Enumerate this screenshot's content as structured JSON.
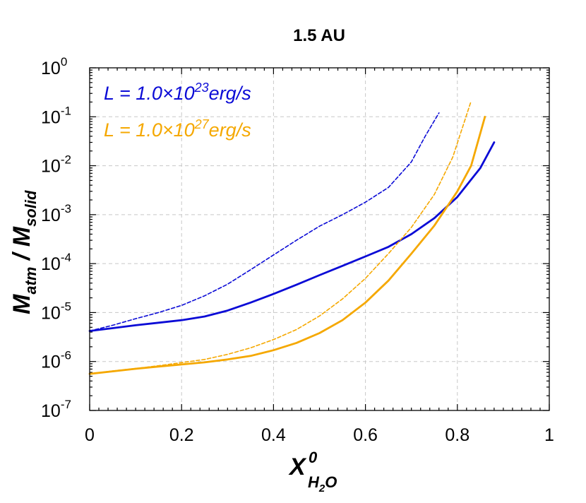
{
  "chart_data": {
    "type": "line",
    "title": "1.5 AU",
    "xlabel_main": "X",
    "xlabel_sub": "H",
    "xlabel_subsub": "2",
    "xlabel_sub_end": "O",
    "xlabel_sup": "0",
    "ylabel_num_main": "M",
    "ylabel_num_sub": "atm",
    "ylabel_sep": " / ",
    "ylabel_den_main": "M",
    "ylabel_den_sub": "solid",
    "xlim": [
      0,
      1
    ],
    "ylim_log10": [
      -7,
      0
    ],
    "y_scale": "log",
    "grid": true,
    "x_ticks": [
      "0",
      "0.2",
      "0.4",
      "0.6",
      "0.8",
      "1"
    ],
    "y_tick_base": "10",
    "y_tick_exponents": [
      "-7",
      "-6",
      "-5",
      "-4",
      "-3",
      "-2",
      "-1",
      "0"
    ],
    "legend_position": "top-left",
    "legend": [
      {
        "prefix": "L = 1.0×10",
        "exponent": "23",
        "suffix": "erg/s",
        "color": "#0b0bd6"
      },
      {
        "prefix": "L = 1.0×10",
        "exponent": "27",
        "suffix": "erg/s",
        "color": "#f5a800"
      }
    ],
    "series": [
      {
        "color": "#0b0bd6",
        "style": "solid",
        "points": [
          [
            0,
            4.2e-06
          ],
          [
            0.05,
            4.8e-06
          ],
          [
            0.1,
            5.5e-06
          ],
          [
            0.15,
            6.2e-06
          ],
          [
            0.2,
            7e-06
          ],
          [
            0.25,
            8.3e-06
          ],
          [
            0.3,
            1.1e-05
          ],
          [
            0.35,
            1.6e-05
          ],
          [
            0.4,
            2.4e-05
          ],
          [
            0.45,
            3.7e-05
          ],
          [
            0.5,
            5.8e-05
          ],
          [
            0.55,
            9e-05
          ],
          [
            0.6,
            0.00014
          ],
          [
            0.65,
            0.00022
          ],
          [
            0.7,
            0.0004
          ],
          [
            0.75,
            0.00085
          ],
          [
            0.8,
            0.0023
          ],
          [
            0.85,
            0.009
          ],
          [
            0.88,
            0.03
          ]
        ]
      },
      {
        "color": "#0b0bd6",
        "style": "dashed",
        "points": [
          [
            0,
            4.2e-06
          ],
          [
            0.05,
            5.5e-06
          ],
          [
            0.1,
            7.5e-06
          ],
          [
            0.15,
            1e-05
          ],
          [
            0.2,
            1.4e-05
          ],
          [
            0.25,
            2.2e-05
          ],
          [
            0.3,
            3.8e-05
          ],
          [
            0.35,
            7.5e-05
          ],
          [
            0.4,
            0.00015
          ],
          [
            0.45,
            0.0003
          ],
          [
            0.5,
            0.00058
          ],
          [
            0.55,
            0.001
          ],
          [
            0.6,
            0.0018
          ],
          [
            0.65,
            0.0036
          ],
          [
            0.7,
            0.012
          ],
          [
            0.73,
            0.04
          ],
          [
            0.76,
            0.12
          ]
        ]
      },
      {
        "color": "#f5a800",
        "style": "solid",
        "points": [
          [
            0,
            5.6e-07
          ],
          [
            0.05,
            6.3e-07
          ],
          [
            0.1,
            7.1e-07
          ],
          [
            0.15,
            7.9e-07
          ],
          [
            0.2,
            8.7e-07
          ],
          [
            0.25,
            9.6e-07
          ],
          [
            0.3,
            1.1e-06
          ],
          [
            0.35,
            1.3e-06
          ],
          [
            0.4,
            1.7e-06
          ],
          [
            0.45,
            2.4e-06
          ],
          [
            0.5,
            3.8e-06
          ],
          [
            0.55,
            7e-06
          ],
          [
            0.6,
            1.6e-05
          ],
          [
            0.65,
            4.5e-05
          ],
          [
            0.7,
            0.00016
          ],
          [
            0.75,
            0.0006
          ],
          [
            0.8,
            0.003
          ],
          [
            0.83,
            0.01
          ],
          [
            0.86,
            0.1
          ]
        ]
      },
      {
        "color": "#f5a800",
        "style": "dashed",
        "points": [
          [
            0,
            5.6e-07
          ],
          [
            0.05,
            6.4e-07
          ],
          [
            0.1,
            7.2e-07
          ],
          [
            0.15,
            8.2e-07
          ],
          [
            0.2,
            9.5e-07
          ],
          [
            0.25,
            1.1e-06
          ],
          [
            0.3,
            1.4e-06
          ],
          [
            0.35,
            1.9e-06
          ],
          [
            0.4,
            2.8e-06
          ],
          [
            0.45,
            4.5e-06
          ],
          [
            0.5,
            8.5e-06
          ],
          [
            0.55,
            1.9e-05
          ],
          [
            0.6,
            5e-05
          ],
          [
            0.65,
            0.00016
          ],
          [
            0.7,
            0.00055
          ],
          [
            0.75,
            0.0026
          ],
          [
            0.79,
            0.015
          ],
          [
            0.83,
            0.21
          ]
        ]
      }
    ]
  }
}
